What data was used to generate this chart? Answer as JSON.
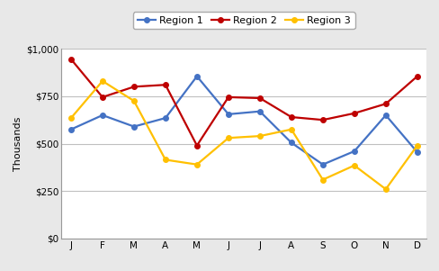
{
  "months": [
    "J",
    "F",
    "M",
    "A",
    "M",
    "J",
    "J",
    "A",
    "S",
    "O",
    "N",
    "D"
  ],
  "region1": [
    575,
    650,
    590,
    635,
    855,
    655,
    670,
    505,
    390,
    460,
    650,
    455
  ],
  "region2": [
    945,
    745,
    800,
    810,
    490,
    745,
    740,
    640,
    625,
    660,
    710,
    855
  ],
  "region3": [
    635,
    830,
    725,
    415,
    390,
    530,
    540,
    575,
    310,
    385,
    260,
    490
  ],
  "region1_color": "#4472C4",
  "region2_color": "#BE0000",
  "region3_color": "#FFC000",
  "legend_labels": [
    "Region 1",
    "Region 2",
    "Region 3"
  ],
  "ylabel": "Thousands",
  "ylim": [
    0,
    1000
  ],
  "yticks": [
    0,
    250,
    500,
    750,
    1000
  ],
  "ytick_labels": [
    "$0",
    "$250",
    "$500",
    "$750",
    "$1,000"
  ],
  "bg_color": "#FFFFFF",
  "plot_bg_color": "#FFFFFF",
  "grid_color": "#C0C0C0",
  "outer_bg": "#E8E8E8"
}
